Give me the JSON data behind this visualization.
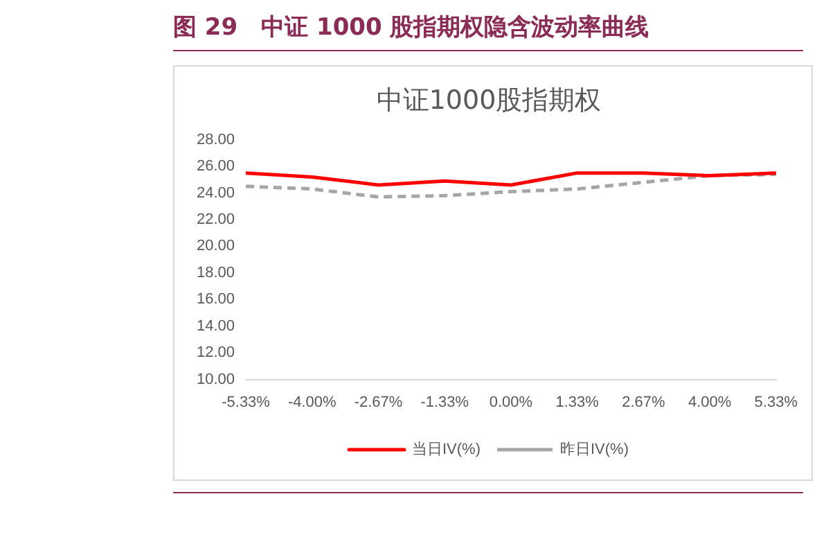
{
  "chart_data": {
    "type": "line",
    "title": "图 29　中证 1000 股指期权隐含波动率曲线",
    "subtitle": "中证1000股指期权",
    "categories": [
      "-5.33%",
      "-4.00%",
      "-2.67%",
      "-1.33%",
      "0.00%",
      "1.33%",
      "2.67%",
      "4.00%",
      "5.33%"
    ],
    "series": [
      {
        "name": "当日IV(%)",
        "color": "#ff0000",
        "line_style": "solid",
        "values": [
          25.5,
          25.2,
          24.6,
          24.9,
          24.6,
          25.5,
          25.5,
          25.3,
          25.5
        ]
      },
      {
        "name": "昨日IV(%)",
        "color": "#a6a6a6",
        "line_style": "dashed",
        "values": [
          24.5,
          24.3,
          23.7,
          23.8,
          24.1,
          24.3,
          24.8,
          25.3,
          25.4
        ]
      }
    ],
    "ylim": [
      10,
      28
    ],
    "yticks": [
      {
        "value": 10,
        "label": "10.00"
      },
      {
        "value": 12,
        "label": "12.00"
      },
      {
        "value": 14,
        "label": "14.00"
      },
      {
        "value": 16,
        "label": "16.00"
      },
      {
        "value": 18,
        "label": "18.00"
      },
      {
        "value": 20,
        "label": "20.00"
      },
      {
        "value": 22,
        "label": "22.00"
      },
      {
        "value": 24,
        "label": "24.00"
      },
      {
        "value": 26,
        "label": "26.00"
      },
      {
        "value": 28,
        "label": "28.00"
      }
    ],
    "grid": false,
    "legend": "bottom",
    "marker": "none"
  }
}
